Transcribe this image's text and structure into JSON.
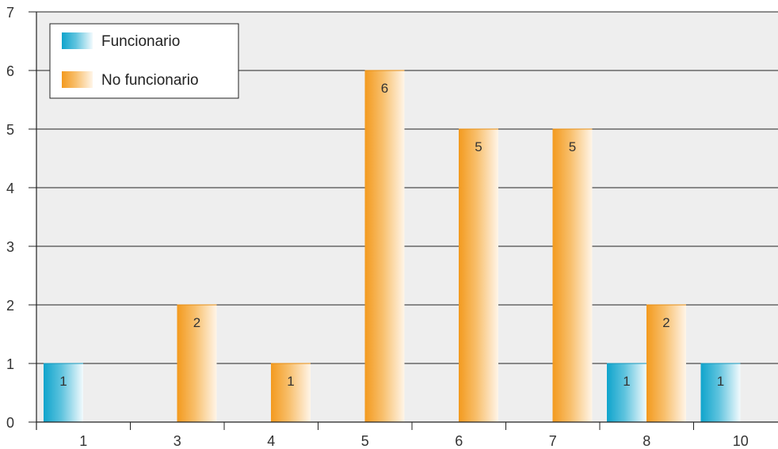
{
  "chart_data": {
    "type": "bar",
    "title": "",
    "xlabel": "",
    "ylabel": "",
    "categories": [
      "1",
      "3",
      "4",
      "5",
      "6",
      "7",
      "8",
      "10"
    ],
    "series": [
      {
        "name": "Funcionario",
        "values": [
          1,
          0,
          0,
          0,
          0,
          0,
          1,
          1
        ],
        "color": "#1aa9d0"
      },
      {
        "name": "No funcionario",
        "values": [
          0,
          2,
          1,
          6,
          5,
          5,
          2,
          0
        ],
        "color": "#f5a02a"
      }
    ],
    "yticks": [
      "0",
      "1",
      "2",
      "3",
      "4",
      "5",
      "6",
      "7"
    ],
    "ylim": [
      0,
      7
    ],
    "grid": true,
    "legend_position": "top-left",
    "plot_background": "#eeeeee",
    "data_labels": true
  }
}
